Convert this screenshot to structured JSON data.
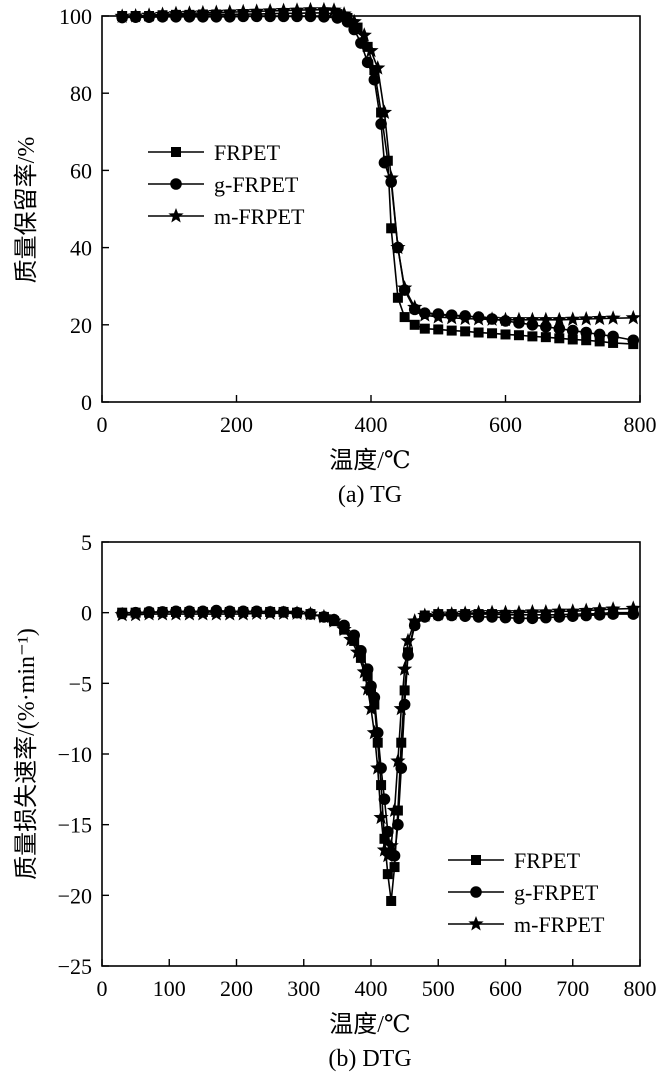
{
  "chart_data": [
    {
      "type": "line",
      "title": "",
      "caption": "(a) TG",
      "xlabel": "温度/℃",
      "ylabel": "质量保留率/%",
      "xlim": [
        0,
        800
      ],
      "ylim": [
        0,
        100
      ],
      "xticks": [
        0,
        200,
        400,
        600,
        800
      ],
      "yticks": [
        0,
        20,
        40,
        60,
        80,
        100
      ],
      "legend_position": "middle-left",
      "series": [
        {
          "name": "FRPET",
          "marker": "square",
          "x": [
            30,
            50,
            70,
            90,
            110,
            130,
            150,
            170,
            190,
            210,
            230,
            250,
            270,
            290,
            310,
            330,
            350,
            365,
            380,
            395,
            405,
            415,
            425,
            430,
            440,
            450,
            465,
            480,
            500,
            520,
            540,
            560,
            580,
            600,
            620,
            640,
            660,
            680,
            700,
            720,
            740,
            760,
            790
          ],
          "y": [
            100,
            100,
            100,
            100.2,
            100.3,
            100.3,
            100.4,
            100.4,
            100.4,
            100.5,
            100.5,
            100.6,
            100.7,
            100.7,
            100.8,
            100.8,
            100.5,
            99.5,
            97,
            92,
            86,
            75,
            62.5,
            45,
            27,
            22,
            20,
            19,
            18.8,
            18.5,
            18.3,
            18,
            17.8,
            17.5,
            17.3,
            17,
            16.8,
            16.5,
            16.2,
            16,
            15.7,
            15.3,
            15
          ]
        },
        {
          "name": "g-FRPET",
          "marker": "circle",
          "x": [
            30,
            50,
            70,
            90,
            110,
            130,
            150,
            170,
            190,
            210,
            230,
            250,
            270,
            290,
            310,
            330,
            350,
            365,
            375,
            385,
            395,
            405,
            415,
            420,
            430,
            440,
            450,
            465,
            480,
            500,
            520,
            540,
            560,
            580,
            600,
            620,
            640,
            660,
            680,
            700,
            720,
            740,
            760,
            790
          ],
          "y": [
            99.6,
            99.7,
            99.7,
            99.8,
            99.8,
            99.8,
            99.8,
            99.8,
            99.8,
            99.9,
            99.9,
            99.9,
            99.9,
            99.9,
            99.9,
            99.8,
            99.5,
            98.5,
            96.5,
            93,
            88,
            83.5,
            72,
            62,
            57,
            40,
            29,
            24,
            23,
            22.8,
            22.5,
            22.3,
            22,
            21.5,
            21,
            20.5,
            20,
            19.5,
            19,
            18.5,
            18,
            17.5,
            17,
            16
          ]
        },
        {
          "name": "m-FRPET",
          "marker": "star",
          "x": [
            30,
            50,
            70,
            90,
            110,
            130,
            150,
            170,
            190,
            210,
            230,
            250,
            270,
            290,
            310,
            330,
            345,
            360,
            375,
            390,
            400,
            410,
            420,
            430,
            440,
            450,
            465,
            480,
            500,
            520,
            540,
            560,
            580,
            600,
            620,
            640,
            660,
            680,
            700,
            720,
            740,
            760,
            790
          ],
          "y": [
            99.9,
            100,
            100.2,
            100.4,
            100.6,
            100.7,
            100.8,
            100.9,
            101,
            101.1,
            101.2,
            101.3,
            101.4,
            101.5,
            101.6,
            101.6,
            101.5,
            100.5,
            98.5,
            95,
            91,
            86.5,
            75,
            58,
            40,
            29.5,
            24.5,
            22.5,
            22,
            21.8,
            21.6,
            21.5,
            21.4,
            21.3,
            21.3,
            21.3,
            21.3,
            21.3,
            21.4,
            21.5,
            21.6,
            21.7,
            21.8
          ]
        }
      ]
    },
    {
      "type": "line",
      "title": "",
      "caption": "(b) DTG",
      "xlabel": "温度/℃",
      "ylabel": "质量损失速率/(%·min⁻¹)",
      "xlim": [
        0,
        800
      ],
      "ylim": [
        -25,
        5
      ],
      "xticks": [
        0,
        100,
        200,
        300,
        400,
        500,
        600,
        700,
        800
      ],
      "yticks": [
        -25,
        -20,
        -15,
        -10,
        -5,
        0,
        5
      ],
      "legend_position": "bottom-right",
      "series": [
        {
          "name": "FRPET",
          "marker": "square",
          "x": [
            30,
            50,
            70,
            90,
            110,
            130,
            150,
            170,
            190,
            210,
            230,
            250,
            270,
            290,
            310,
            330,
            345,
            360,
            375,
            385,
            395,
            400,
            405,
            410,
            415,
            420,
            425,
            430,
            435,
            440,
            445,
            450,
            455,
            465,
            480,
            500,
            520,
            540,
            560,
            580,
            600,
            620,
            640,
            660,
            680,
            700,
            720,
            740,
            760,
            790
          ],
          "y": [
            0,
            0,
            0,
            0.05,
            0.05,
            0.05,
            0.05,
            0.05,
            0.05,
            0.05,
            0.05,
            0.05,
            0.05,
            0,
            -0.1,
            -0.3,
            -0.6,
            -1.2,
            -2,
            -3.2,
            -4.5,
            -5.5,
            -6.5,
            -9.2,
            -12.2,
            -16,
            -18.5,
            -20.4,
            -18,
            -14,
            -9.2,
            -5.5,
            -2.8,
            -0.8,
            -0.2,
            -0.1,
            -0.1,
            -0.1,
            -0.1,
            -0.1,
            -0.15,
            -0.15,
            -0.15,
            -0.15,
            -0.15,
            -0.1,
            -0.1,
            -0.05,
            0,
            0
          ]
        },
        {
          "name": "g-FRPET",
          "marker": "circle",
          "x": [
            30,
            50,
            70,
            90,
            110,
            130,
            150,
            170,
            190,
            210,
            230,
            250,
            270,
            290,
            310,
            330,
            345,
            360,
            375,
            385,
            395,
            400,
            405,
            410,
            415,
            420,
            425,
            430,
            435,
            440,
            445,
            450,
            455,
            465,
            480,
            500,
            520,
            540,
            560,
            580,
            600,
            620,
            640,
            660,
            680,
            700,
            720,
            740,
            760,
            790
          ],
          "y": [
            -0.05,
            0,
            0.05,
            0.05,
            0.1,
            0.1,
            0.1,
            0.15,
            0.1,
            0.1,
            0.1,
            0.05,
            0.05,
            0,
            -0.1,
            -0.3,
            -0.5,
            -0.9,
            -1.6,
            -2.7,
            -4,
            -5.2,
            -6,
            -8.5,
            -11,
            -13.2,
            -15.5,
            -17,
            -17.2,
            -15,
            -11,
            -6.5,
            -3,
            -0.9,
            -0.3,
            -0.2,
            -0.2,
            -0.25,
            -0.3,
            -0.3,
            -0.35,
            -0.4,
            -0.4,
            -0.35,
            -0.3,
            -0.25,
            -0.2,
            -0.15,
            -0.1,
            -0.1
          ]
        },
        {
          "name": "m-FRPET",
          "marker": "star",
          "x": [
            30,
            50,
            70,
            90,
            110,
            130,
            150,
            170,
            190,
            210,
            230,
            250,
            270,
            290,
            310,
            330,
            345,
            360,
            370,
            380,
            390,
            395,
            400,
            405,
            410,
            415,
            420,
            425,
            430,
            435,
            440,
            445,
            450,
            455,
            465,
            480,
            500,
            520,
            540,
            560,
            580,
            600,
            620,
            640,
            660,
            680,
            700,
            720,
            740,
            760,
            790
          ],
          "y": [
            -0.15,
            -0.15,
            -0.1,
            -0.1,
            -0.1,
            -0.1,
            -0.1,
            -0.1,
            -0.1,
            -0.1,
            -0.05,
            -0.05,
            -0.05,
            -0.05,
            -0.1,
            -0.3,
            -0.6,
            -1.2,
            -1.9,
            -2.8,
            -4.2,
            -5.4,
            -6.8,
            -8.5,
            -11,
            -14.5,
            -16.8,
            -17.2,
            -16.5,
            -14,
            -10.5,
            -6.8,
            -4,
            -2,
            -0.6,
            -0.2,
            -0.1,
            -0.1,
            -0.05,
            0,
            0,
            0,
            0,
            0.05,
            0.05,
            0.1,
            0.1,
            0.15,
            0.2,
            0.25,
            0.3
          ]
        }
      ]
    }
  ]
}
